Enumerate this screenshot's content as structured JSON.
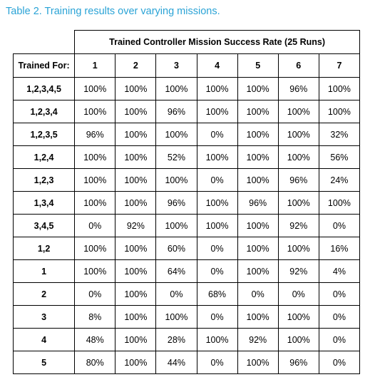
{
  "caption": "Table 2. Training results over varying missions.",
  "table": {
    "group_header": "Trained Controller Mission Success Rate (25 Runs)",
    "row_header": "Trained For:",
    "columns": [
      "1",
      "2",
      "3",
      "4",
      "5",
      "6",
      "7"
    ],
    "rows": [
      {
        "label": "1,2,3,4,5",
        "values": [
          "100%",
          "100%",
          "100%",
          "100%",
          "100%",
          "96%",
          "100%"
        ]
      },
      {
        "label": "1,2,3,4",
        "values": [
          "100%",
          "100%",
          "96%",
          "100%",
          "100%",
          "100%",
          "100%"
        ]
      },
      {
        "label": "1,2,3,5",
        "values": [
          "96%",
          "100%",
          "100%",
          "0%",
          "100%",
          "100%",
          "32%"
        ]
      },
      {
        "label": "1,2,4",
        "values": [
          "100%",
          "100%",
          "52%",
          "100%",
          "100%",
          "100%",
          "56%"
        ]
      },
      {
        "label": "1,2,3",
        "values": [
          "100%",
          "100%",
          "100%",
          "0%",
          "100%",
          "96%",
          "24%"
        ]
      },
      {
        "label": "1,3,4",
        "values": [
          "100%",
          "100%",
          "96%",
          "100%",
          "96%",
          "100%",
          "100%"
        ]
      },
      {
        "label": "3,4,5",
        "values": [
          "0%",
          "92%",
          "100%",
          "100%",
          "100%",
          "92%",
          "0%"
        ]
      },
      {
        "label": "1,2",
        "values": [
          "100%",
          "100%",
          "60%",
          "0%",
          "100%",
          "100%",
          "16%"
        ]
      },
      {
        "label": "1",
        "values": [
          "100%",
          "100%",
          "64%",
          "0%",
          "100%",
          "92%",
          "4%"
        ]
      },
      {
        "label": "2",
        "values": [
          "0%",
          "100%",
          "0%",
          "68%",
          "0%",
          "0%",
          "0%"
        ]
      },
      {
        "label": "3",
        "values": [
          "8%",
          "100%",
          "100%",
          "0%",
          "100%",
          "100%",
          "0%"
        ]
      },
      {
        "label": "4",
        "values": [
          "48%",
          "100%",
          "28%",
          "100%",
          "92%",
          "100%",
          "0%"
        ]
      },
      {
        "label": "5",
        "values": [
          "80%",
          "100%",
          "44%",
          "0%",
          "100%",
          "96%",
          "0%"
        ]
      }
    ]
  }
}
